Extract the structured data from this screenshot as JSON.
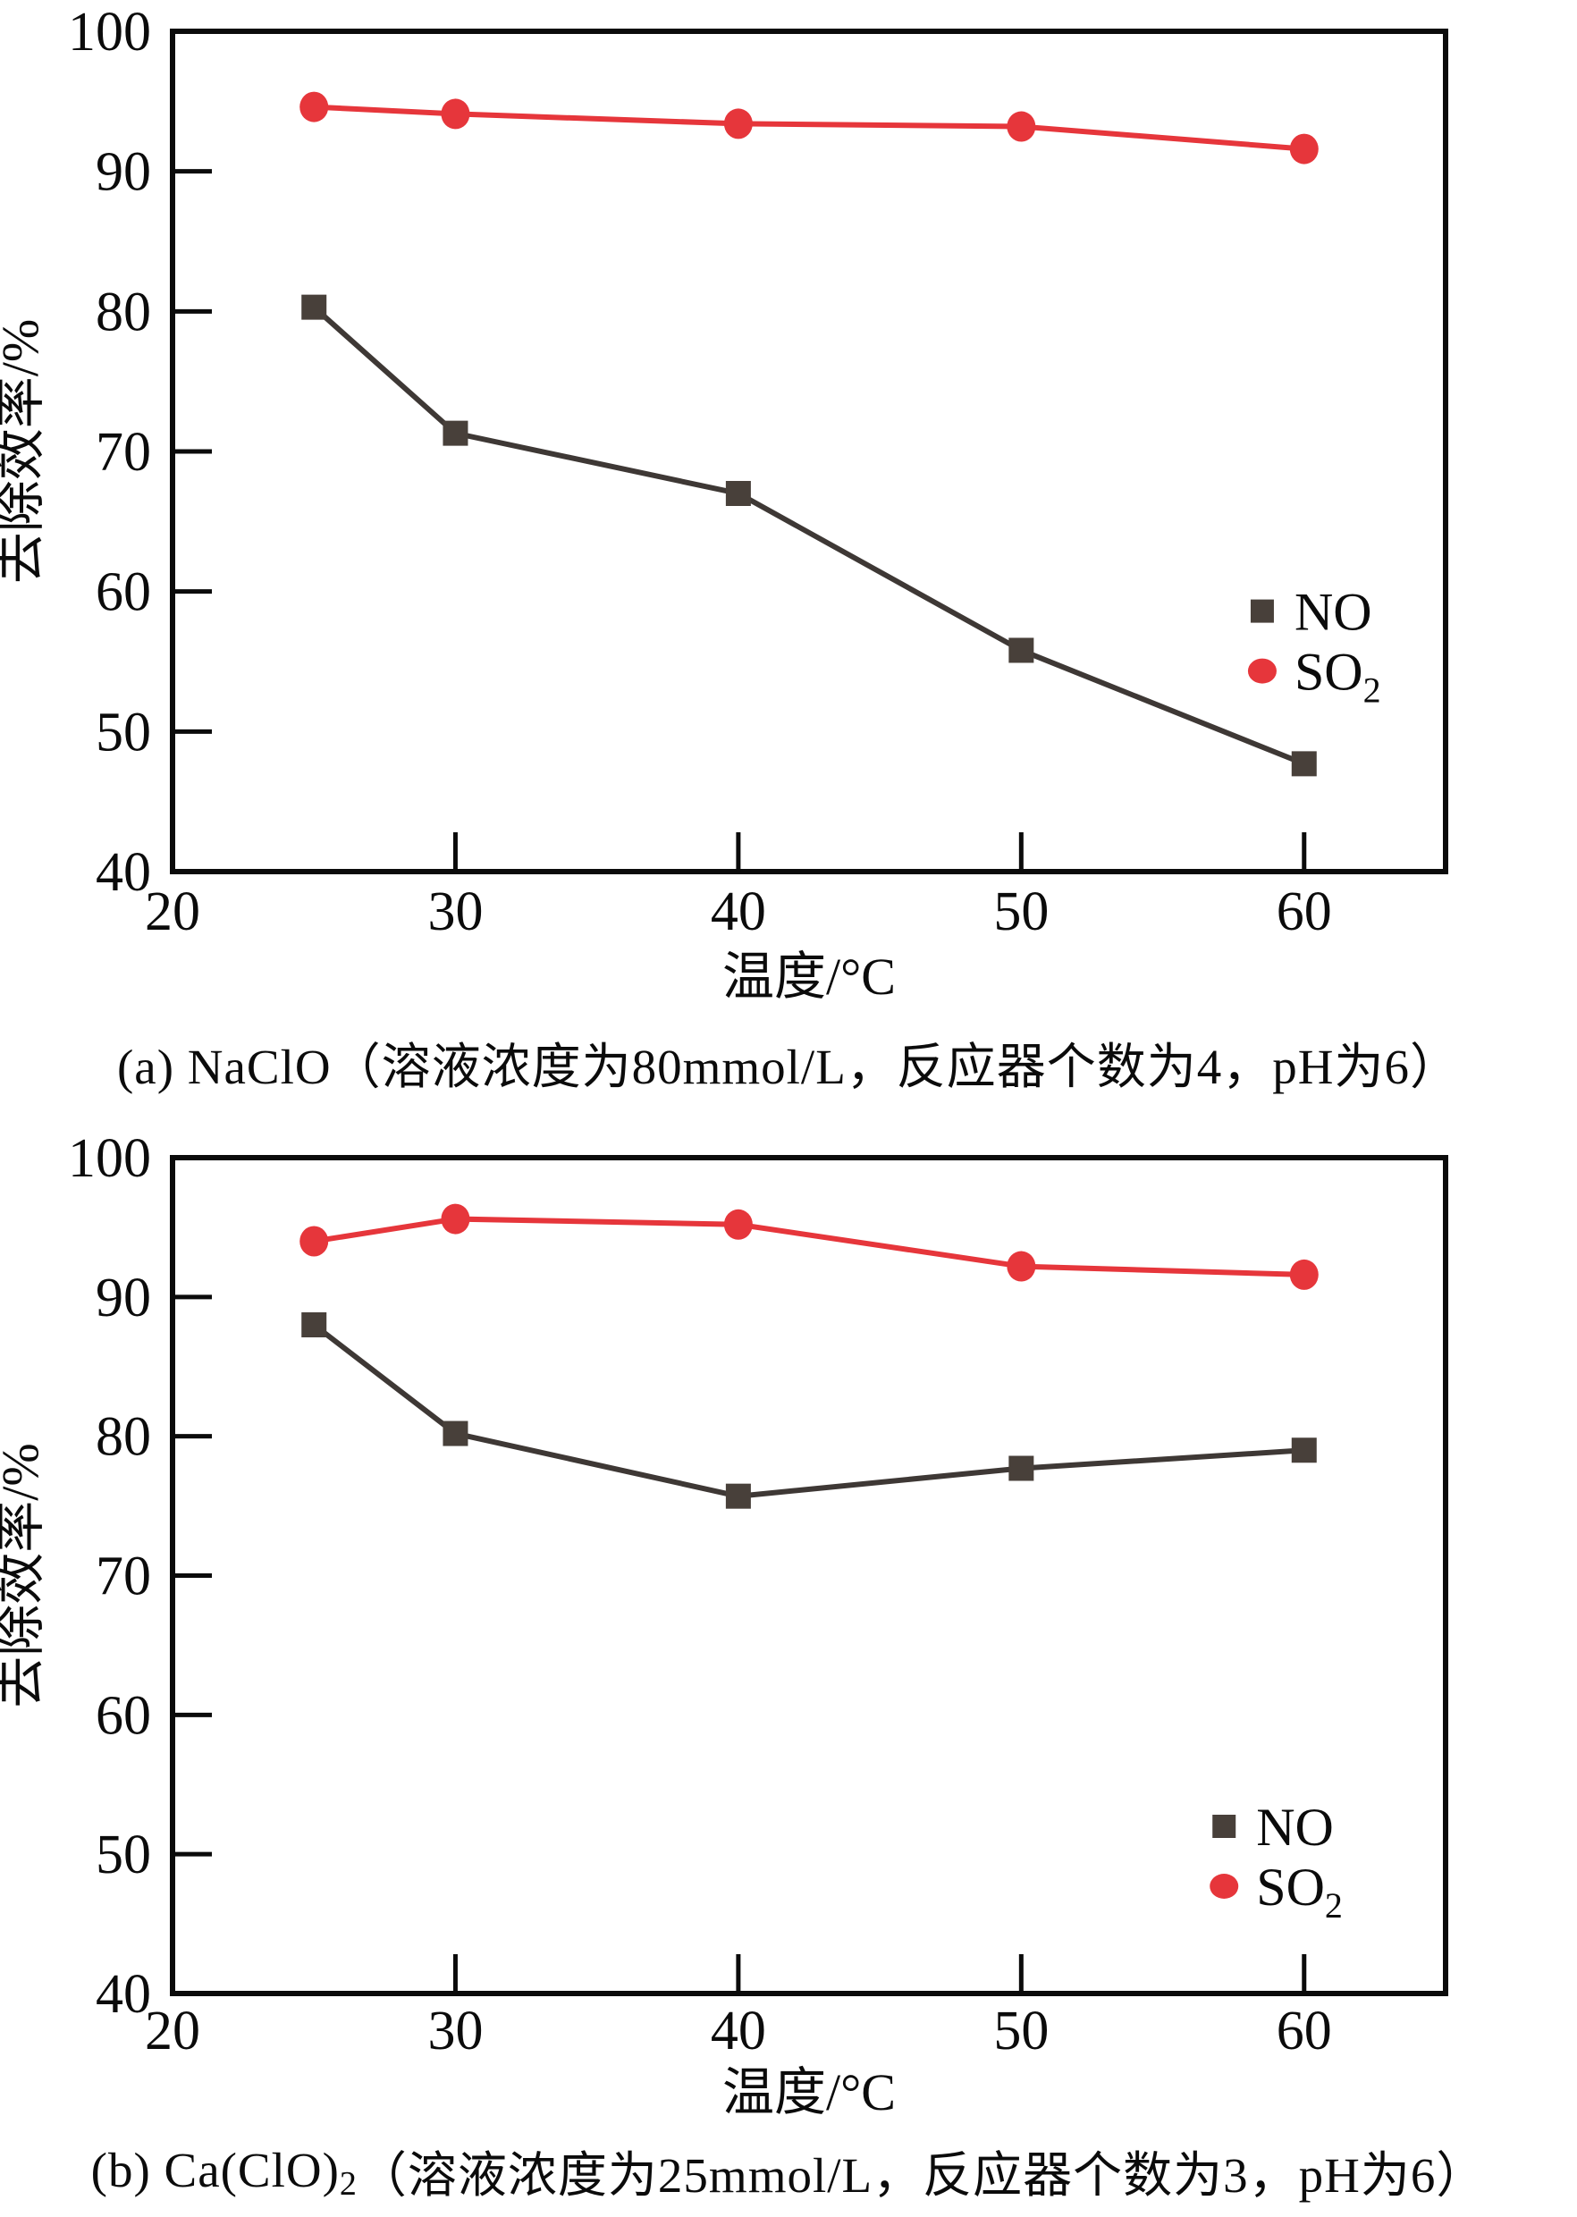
{
  "figure": {
    "panel_a": {
      "caption_parts": [
        {
          "text": "(a) NaClO（溶液浓度为80mmol/L，反应器个数为4，pH为6）",
          "sub": false
        }
      ]
    },
    "panel_b": {
      "caption_parts": [
        {
          "text": "(b) Ca(ClO)",
          "sub": false
        },
        {
          "text": "2",
          "sub": true
        },
        {
          "text": "（溶液浓度为25mmol/L，反应器个数为3，pH为6）",
          "sub": false
        }
      ]
    }
  },
  "colors": {
    "no_marker": "#48403a",
    "no_line": "#3e3835",
    "so2_marker": "#e6363b",
    "so2_line": "#e6363b",
    "axis": "#0b0b0b"
  },
  "chart_data": [
    {
      "type": "line",
      "title": "",
      "xlabel": "温度/°C",
      "ylabel": "去除效率/%",
      "x": [
        25,
        30,
        40,
        50,
        60
      ],
      "xlim": [
        20,
        65
      ],
      "ylim": [
        40,
        100
      ],
      "xticks": [
        20,
        30,
        40,
        50,
        60
      ],
      "yticks": [
        40,
        50,
        60,
        70,
        80,
        90,
        100
      ],
      "grid": false,
      "legend_position": "inside-right",
      "series": [
        {
          "name": "NO",
          "name_sub": "",
          "marker": "square",
          "values": [
            80.3,
            71.3,
            67.0,
            55.8,
            47.7
          ]
        },
        {
          "name": "SO",
          "name_sub": "2",
          "marker": "circle",
          "values": [
            94.6,
            94.1,
            93.4,
            93.2,
            91.6
          ]
        }
      ],
      "caption": "(a) NaClO（溶液浓度为80mmol/L，反应器个数为4，pH为6）"
    },
    {
      "type": "line",
      "title": "",
      "xlabel": "温度/°C",
      "ylabel": "去除效率/%",
      "x": [
        25,
        30,
        40,
        50,
        60
      ],
      "xlim": [
        20,
        65
      ],
      "ylim": [
        40,
        100
      ],
      "xticks": [
        20,
        30,
        40,
        50,
        60
      ],
      "yticks": [
        40,
        50,
        60,
        70,
        80,
        90,
        100
      ],
      "grid": false,
      "legend_position": "inside-right",
      "series": [
        {
          "name": "NO",
          "name_sub": "",
          "marker": "square",
          "values": [
            88.0,
            80.2,
            75.7,
            77.7,
            79.0
          ]
        },
        {
          "name": "SO",
          "name_sub": "2",
          "marker": "circle",
          "values": [
            94.0,
            95.6,
            95.2,
            92.2,
            91.6
          ]
        }
      ],
      "caption": "(b) Ca(ClO)2（溶液浓度为25mmol/L，反应器个数为3，pH为6）"
    }
  ]
}
